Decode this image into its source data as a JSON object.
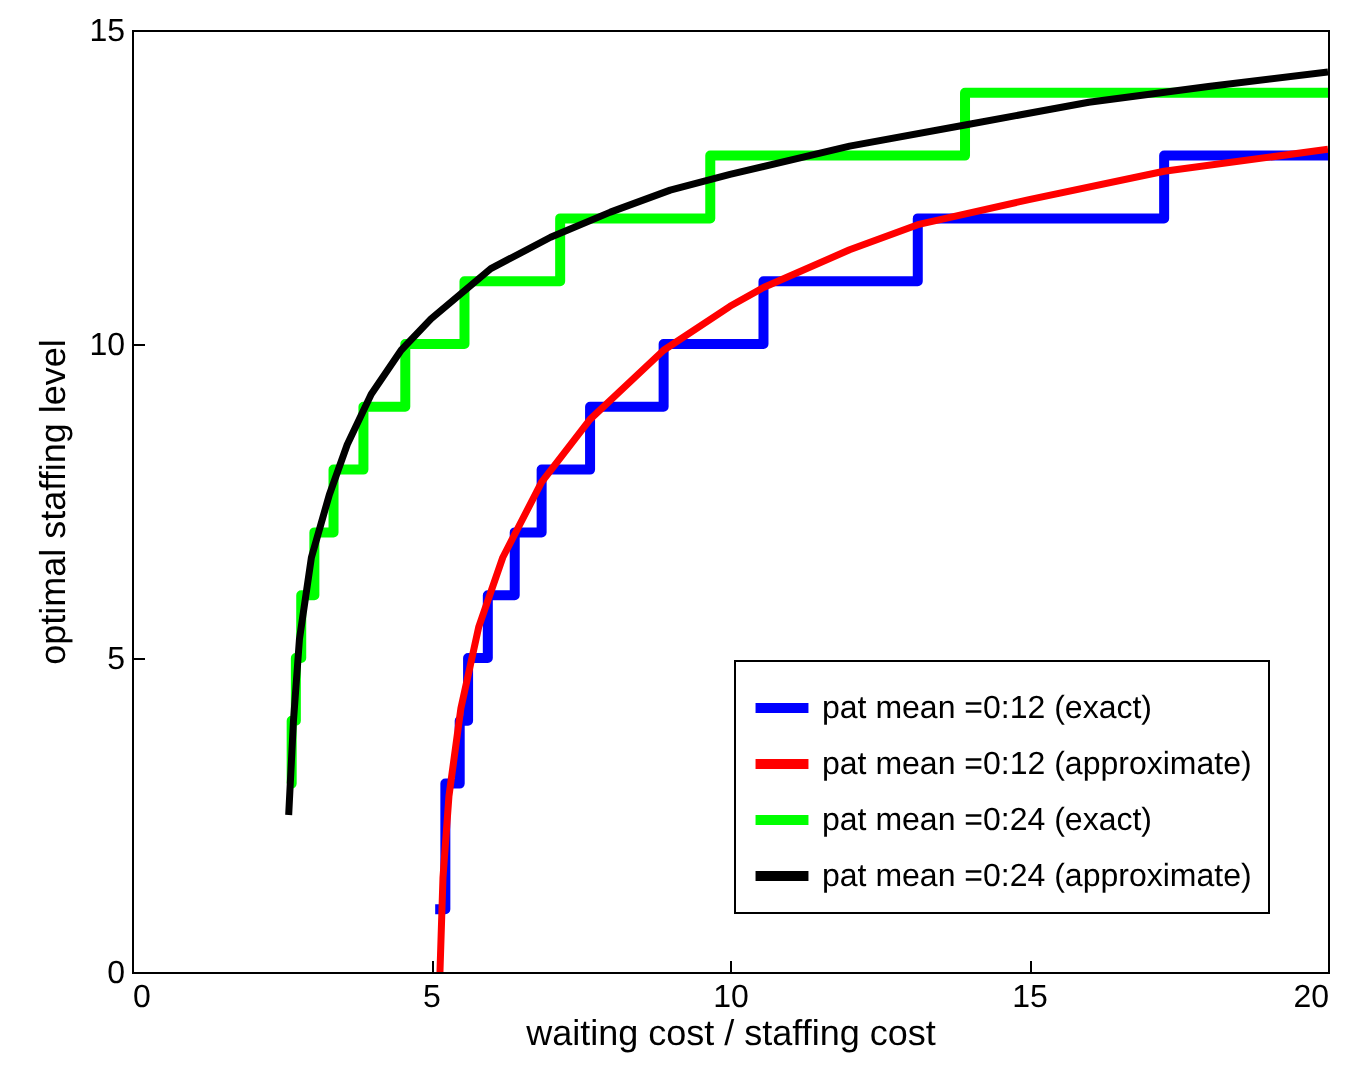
{
  "chart_data": {
    "type": "line",
    "xlabel": "waiting cost / staffing cost",
    "ylabel": "optimal staffing level",
    "xlim": [
      0,
      20
    ],
    "ylim": [
      0,
      15
    ],
    "xticks": [
      0,
      5,
      10,
      15,
      20
    ],
    "yticks": [
      0,
      5,
      10,
      15
    ],
    "legend": "bottom right",
    "series": [
      {
        "name": "pat mean =0:12 (exact)",
        "type": "step",
        "color": "#0000ff",
        "x": [
          5.07,
          5.24,
          5.48,
          5.62,
          5.95,
          6.4,
          6.85,
          7.66,
          8.89,
          10.56,
          13.14,
          17.26,
          20
        ],
        "values": [
          1,
          3,
          4,
          5,
          6,
          7,
          8,
          9,
          10,
          11,
          12,
          13,
          13
        ]
      },
      {
        "name": "pat mean =0:12 (approximate)",
        "type": "line",
        "color": "#ff0000",
        "x": [
          5.15,
          5.2,
          5.3,
          5.5,
          5.8,
          6.2,
          6.85,
          7.66,
          8.89,
          10,
          10.56,
          12,
          13.14,
          15,
          17.26,
          20
        ],
        "values": [
          0,
          1.5,
          2.8,
          4.2,
          5.5,
          6.6,
          7.8,
          8.8,
          9.9,
          10.6,
          10.9,
          11.5,
          11.9,
          12.3,
          12.75,
          13.1
        ]
      },
      {
        "name": "pat mean =0:24 (exact)",
        "type": "step",
        "color": "#00ff00",
        "x": [
          2.62,
          2.67,
          2.74,
          2.83,
          3.05,
          3.37,
          3.87,
          4.57,
          5.56,
          7.16,
          9.67,
          13.93,
          20
        ],
        "values": [
          3,
          4,
          5,
          6,
          7,
          8,
          9,
          10,
          11,
          12,
          13,
          14,
          14
        ]
      },
      {
        "name": "pat mean =0:24 (approximate)",
        "type": "line",
        "color": "#000000",
        "x": [
          2.62,
          2.7,
          2.8,
          3,
          3.3,
          3.6,
          4,
          4.5,
          5,
          6,
          7,
          8,
          9,
          10,
          12,
          14,
          16,
          18,
          20
        ],
        "values": [
          2.5,
          4,
          5.3,
          6.6,
          7.6,
          8.4,
          9.2,
          9.9,
          10.4,
          11.2,
          11.7,
          12.1,
          12.45,
          12.7,
          13.15,
          13.5,
          13.85,
          14.1,
          14.33
        ]
      }
    ]
  }
}
